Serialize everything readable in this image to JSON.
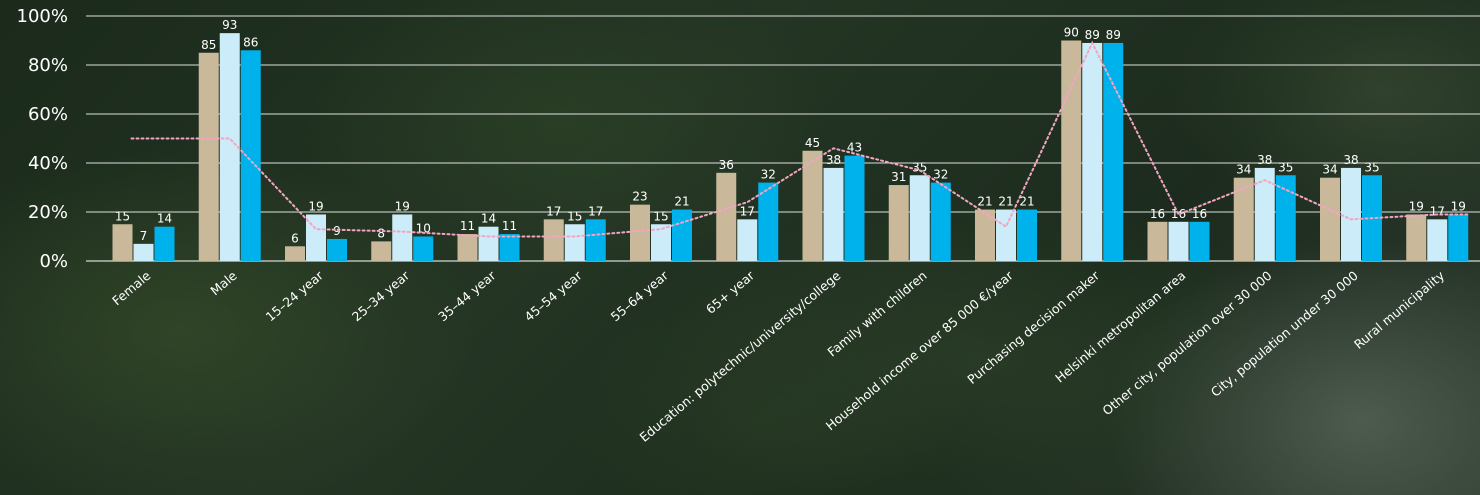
{
  "chart_data": {
    "type": "bar",
    "categories": [
      "Female",
      "Male",
      "15–24 year",
      "25–34 year",
      "35–44 year",
      "45–54 year",
      "55–64 year",
      "65+ year",
      "Education: polytechnic/university/college",
      "Family with children",
      "Household income over 85 000 €/year",
      "Purchasing decision maker",
      "Helsinki metropolitan area",
      "Other city, population over 30 000",
      "City, population under 30 000",
      "Rural municipality"
    ],
    "series": [
      {
        "values": [
          15,
          85,
          6,
          8,
          11,
          17,
          23,
          36,
          45,
          31,
          21,
          90,
          16,
          34,
          34,
          19
        ],
        "color": "#c9b99a"
      },
      {
        "values": [
          7,
          93,
          19,
          19,
          14,
          15,
          15,
          17,
          38,
          35,
          21,
          89,
          16,
          38,
          38,
          17
        ],
        "color": "#cdecfa"
      },
      {
        "values": [
          14,
          86,
          9,
          10,
          11,
          17,
          21,
          32,
          43,
          32,
          21,
          89,
          16,
          35,
          35,
          19
        ],
        "color": "#00b2ec"
      }
    ],
    "line": {
      "values": [
        50,
        50,
        13,
        12,
        10,
        10,
        13,
        24,
        46,
        37,
        14,
        89,
        19,
        33,
        17,
        19
      ],
      "color": "#f2a5c3",
      "style": "dotted"
    },
    "yticks": [
      "0%",
      "20%",
      "40%",
      "60%",
      "80%",
      "100%"
    ],
    "ylim": [
      0,
      100
    ],
    "grid": true
  }
}
